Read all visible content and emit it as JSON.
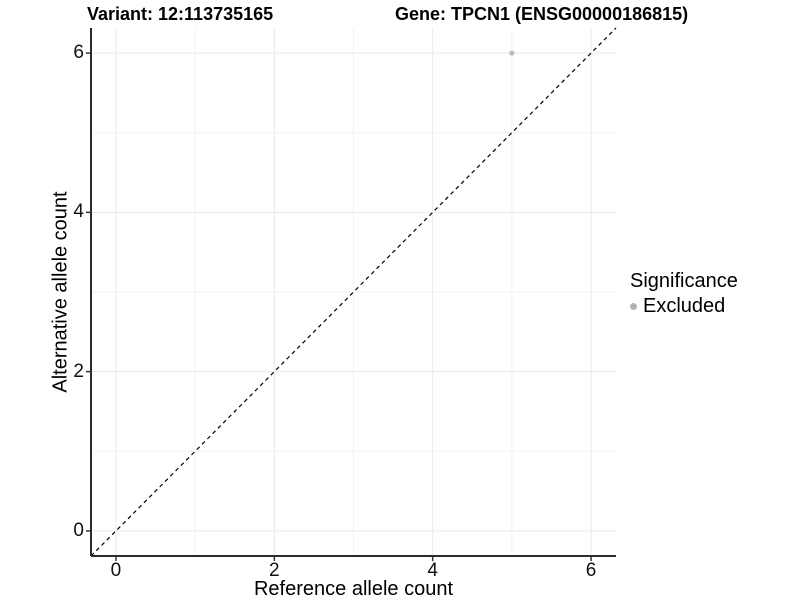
{
  "chart_data": {
    "type": "scatter",
    "title_left": "Variant: 12:113735165",
    "title_right": "Gene: TPCN1 (ENSG00000186815)",
    "xlabel": "Reference allele count",
    "ylabel": "Alternative allele count",
    "xlim": [
      -0.315,
      6.315
    ],
    "ylim": [
      -0.315,
      6.315
    ],
    "x_ticks": [
      0,
      2,
      4,
      6
    ],
    "y_ticks": [
      0,
      2,
      4,
      6
    ],
    "x_minor_ticks": [
      1,
      3,
      5
    ],
    "y_minor_ticks": [
      1,
      3,
      5
    ],
    "grid": "major and minor gridlines on white panel",
    "identity_line": {
      "slope": 1,
      "intercept": 0,
      "style": "dashed",
      "color": "#000000"
    },
    "series": [
      {
        "name": "Excluded",
        "color": "#bcbcbc",
        "points": [
          {
            "x": 5,
            "y": 6
          }
        ]
      }
    ],
    "legend": {
      "title": "Significance",
      "position": "right",
      "entries": [
        {
          "label": "Excluded",
          "color": "#b3b3b3"
        }
      ]
    }
  },
  "colors": {
    "major_grid": "#e9e9e9",
    "minor_grid": "#f2f2f2",
    "axis_line": "#2a2a2a",
    "tick_mark": "#333333",
    "text": "#000000",
    "point": "#bcbcbc"
  }
}
